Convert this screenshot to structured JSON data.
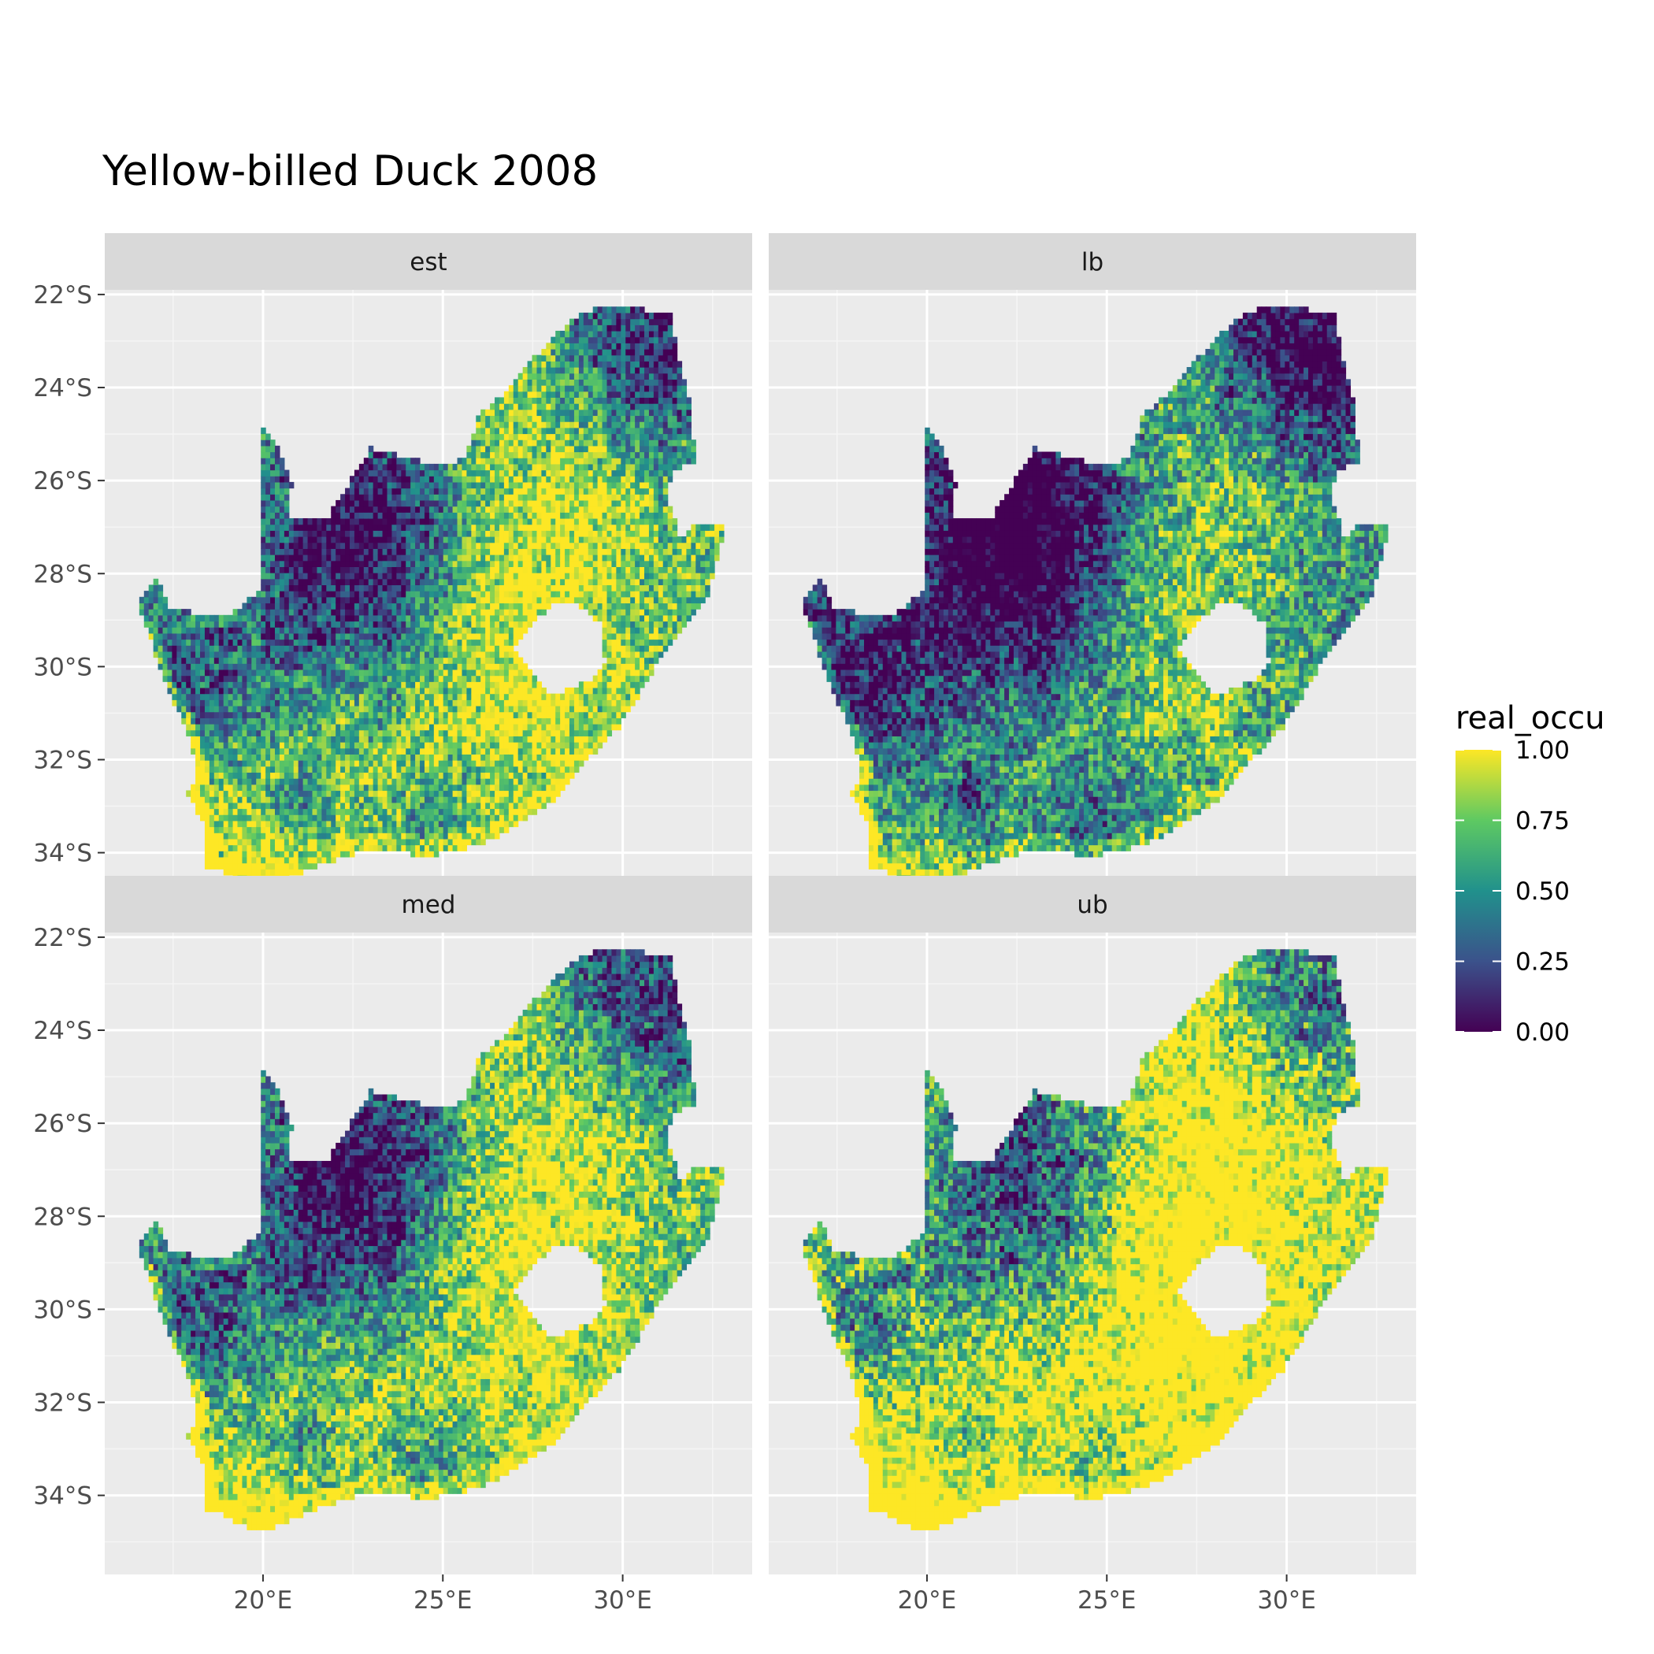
{
  "title": "Yellow-billed Duck 2008",
  "legend": {
    "title": "real_occu",
    "breaks": [
      "1.00",
      "0.75",
      "0.50",
      "0.25",
      "0.00"
    ],
    "break_values": [
      1.0,
      0.75,
      0.5,
      0.25,
      0.0
    ],
    "colormap": "viridis",
    "colors": [
      "#440154",
      "#3b528b",
      "#21918c",
      "#5ec962",
      "#fde725"
    ],
    "placement": "right"
  },
  "axes": {
    "lon_ticks": [
      20,
      25,
      30
    ],
    "lon_labels": [
      "20°E",
      "25°E",
      "30°E"
    ],
    "lat_ticks": [
      -22,
      -24,
      -26,
      -28,
      -30,
      -32,
      -34
    ],
    "lat_labels": [
      "22°S",
      "24°S",
      "26°S",
      "28°S",
      "30°S",
      "32°S",
      "34°S"
    ],
    "xlim": [
      15.6,
      33.6
    ],
    "ylim": [
      -35.7,
      -21.9
    ]
  },
  "panels": [
    {
      "key": "est",
      "label": "est"
    },
    {
      "key": "lb",
      "label": "lb"
    },
    {
      "key": "med",
      "label": "med"
    },
    {
      "key": "ub",
      "label": "ub"
    }
  ],
  "chart_data": {
    "type": "heatmap",
    "title": "Yellow-billed Duck 2008",
    "facets": [
      "est",
      "lb",
      "med",
      "ub"
    ],
    "variable": "real_occu",
    "value_range": [
      0,
      1
    ],
    "grid": true
  }
}
